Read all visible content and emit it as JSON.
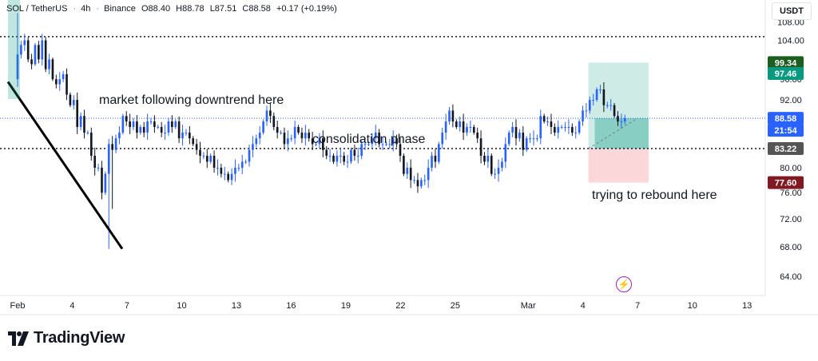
{
  "header": {
    "symbol": "SOL / TetherUS",
    "interval": "4h",
    "exchange": "Binance",
    "open": "O88.40",
    "high": "H88.78",
    "low": "L87.51",
    "close": "C88.58",
    "change": "+0.17 (+0.19%)"
  },
  "currency_button": "USDT",
  "annotations": {
    "downtrend": "market following downtrend here",
    "consolidation": "consolidation phase",
    "rebound": "trying to rebound here"
  },
  "price_tags": {
    "target_high": "99.34",
    "target_low": "97.46",
    "current_price": "88.58",
    "countdown": "21:54",
    "entry": "83.22",
    "stop": "77.60"
  },
  "footer": {
    "brand": "TradingView",
    "logo": "tradingview-logo-icon"
  },
  "colors": {
    "up": "#2962ff",
    "down": "#131722",
    "profit": "#089981",
    "loss": "#f23645",
    "last_price": "#2962ff",
    "tag_dark": "#1b5e20",
    "tag_entry": "#555555",
    "tag_stop": "#801922"
  },
  "chart_data": {
    "type": "candlestick",
    "yscale": "log",
    "ylim": [
      61.5,
      113
    ],
    "y_ticks": [
      64,
      68,
      72,
      76,
      80,
      92,
      96,
      104,
      108
    ],
    "x_ticks": [
      {
        "label": "Feb",
        "t": 0
      },
      {
        "label": "4",
        "t": 3
      },
      {
        "label": "7",
        "t": 6
      },
      {
        "label": "10",
        "t": 9
      },
      {
        "label": "13",
        "t": 12
      },
      {
        "label": "16",
        "t": 15
      },
      {
        "label": "19",
        "t": 18
      },
      {
        "label": "22",
        "t": 21
      },
      {
        "label": "25",
        "t": 24
      },
      {
        "label": "Mar",
        "t": 28
      },
      {
        "label": "4",
        "t": 31
      },
      {
        "label": "7",
        "t": 34
      },
      {
        "label": "10",
        "t": 37
      },
      {
        "label": "13",
        "t": 40
      }
    ],
    "horizontal_levels": [
      104.8,
      83.22
    ],
    "last_price": 88.58,
    "downtrend_line": [
      [
        0,
        100.3
      ],
      [
        5.3,
        67.7
      ]
    ],
    "position_box": {
      "t_start": 31.3,
      "t_end": 34.6,
      "target": 99.34,
      "entry": 83.22,
      "stop": 77.6
    },
    "projection": {
      "t_start": 31.3,
      "t_end": 34.0
    },
    "candles_note": "ohlc values below in USDT, t in days since Feb 1",
    "candles": []
  }
}
